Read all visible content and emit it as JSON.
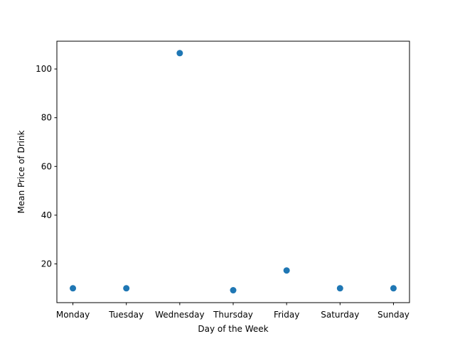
{
  "chart_data": {
    "type": "scatter",
    "title": "",
    "xlabel": "Day of the Week",
    "ylabel": "Mean Price of Drink",
    "categories": [
      "Monday",
      "Tuesday",
      "Wednesday",
      "Thursday",
      "Friday",
      "Saturday",
      "Sunday"
    ],
    "series": [
      {
        "values": [
          10.0,
          10.0,
          106.5,
          9.2,
          17.3,
          10.0,
          10.0
        ]
      }
    ],
    "ylim": [
      4.1,
      111.4
    ],
    "yticks": [
      20,
      40,
      60,
      80,
      100
    ],
    "grid": false,
    "legend": "none",
    "marker_color": "#1f77b4"
  }
}
